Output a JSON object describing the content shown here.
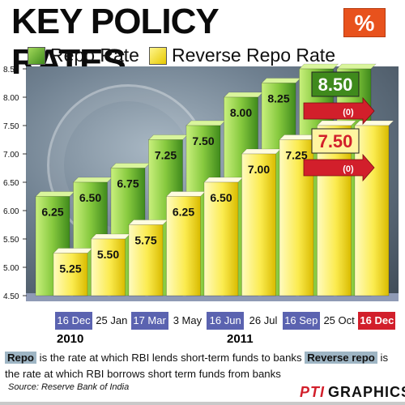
{
  "title": "KEY POLICY RATES",
  "badge": "%",
  "legend": {
    "repo_label": "Repo Rate",
    "reverse_label": "Reverse Repo Rate"
  },
  "colors": {
    "repo_light": "#b5e36a",
    "repo_dark": "#3f8a1c",
    "reverse_light": "#fff9a0",
    "reverse_dark": "#e6c800",
    "date_highlight": "#5b63b0",
    "date_current": "#d21f2b",
    "arrow_red": "#d21f2b"
  },
  "chart_data": {
    "type": "bar",
    "categories": [
      "16 Dec",
      "25 Jan",
      "17 Mar",
      "3 May",
      "16 Jun",
      "26 Jul",
      "16 Sep",
      "25 Oct",
      "16 Dec"
    ],
    "highlighted_categories": [
      0,
      2,
      4,
      6
    ],
    "current_category": 8,
    "years": [
      {
        "label": "2010",
        "start": 0,
        "end": 0
      },
      {
        "label": "2011",
        "start": 1,
        "end": 8
      }
    ],
    "series": [
      {
        "name": "Repo Rate",
        "values": [
          6.25,
          6.5,
          6.75,
          7.25,
          7.5,
          8.0,
          8.25,
          8.5,
          8.5
        ]
      },
      {
        "name": "Reverse Repo Rate",
        "values": [
          5.25,
          5.5,
          5.75,
          6.25,
          6.5,
          7.0,
          7.25,
          7.5,
          7.5
        ]
      }
    ],
    "ylim": [
      4.5,
      8.5
    ],
    "yticks": [
      "4.50",
      "5.00",
      "5.50",
      "6.00",
      "6.50",
      "7.00",
      "7.50",
      "8.00",
      "8.50"
    ],
    "value_labels": {
      "repo": [
        "6.25",
        "6.50",
        "6.75",
        "7.25",
        "7.50",
        "8.00",
        "8.25",
        "8.50",
        "8.50"
      ],
      "reverse": [
        "5.25",
        "5.50",
        "5.75",
        "6.25",
        "6.50",
        "7.00",
        "7.25",
        "7.50",
        "7.50"
      ]
    },
    "callouts": [
      {
        "series": "Repo Rate",
        "value": "8.50",
        "change": "(0)"
      },
      {
        "series": "Reverse Repo Rate",
        "value": "7.50",
        "change": "(0)"
      }
    ]
  },
  "notes": {
    "repo_tag": "Repo",
    "repo_text": " is the rate at which RBI lends short-term funds to banks ",
    "reverse_tag": "Reverse repo",
    "reverse_text": " is the rate at which RBI borrows short term funds from banks"
  },
  "source": "Source: Reserve Bank of India",
  "credit": {
    "agency": "PTI",
    "label": "GRAPHICS"
  }
}
